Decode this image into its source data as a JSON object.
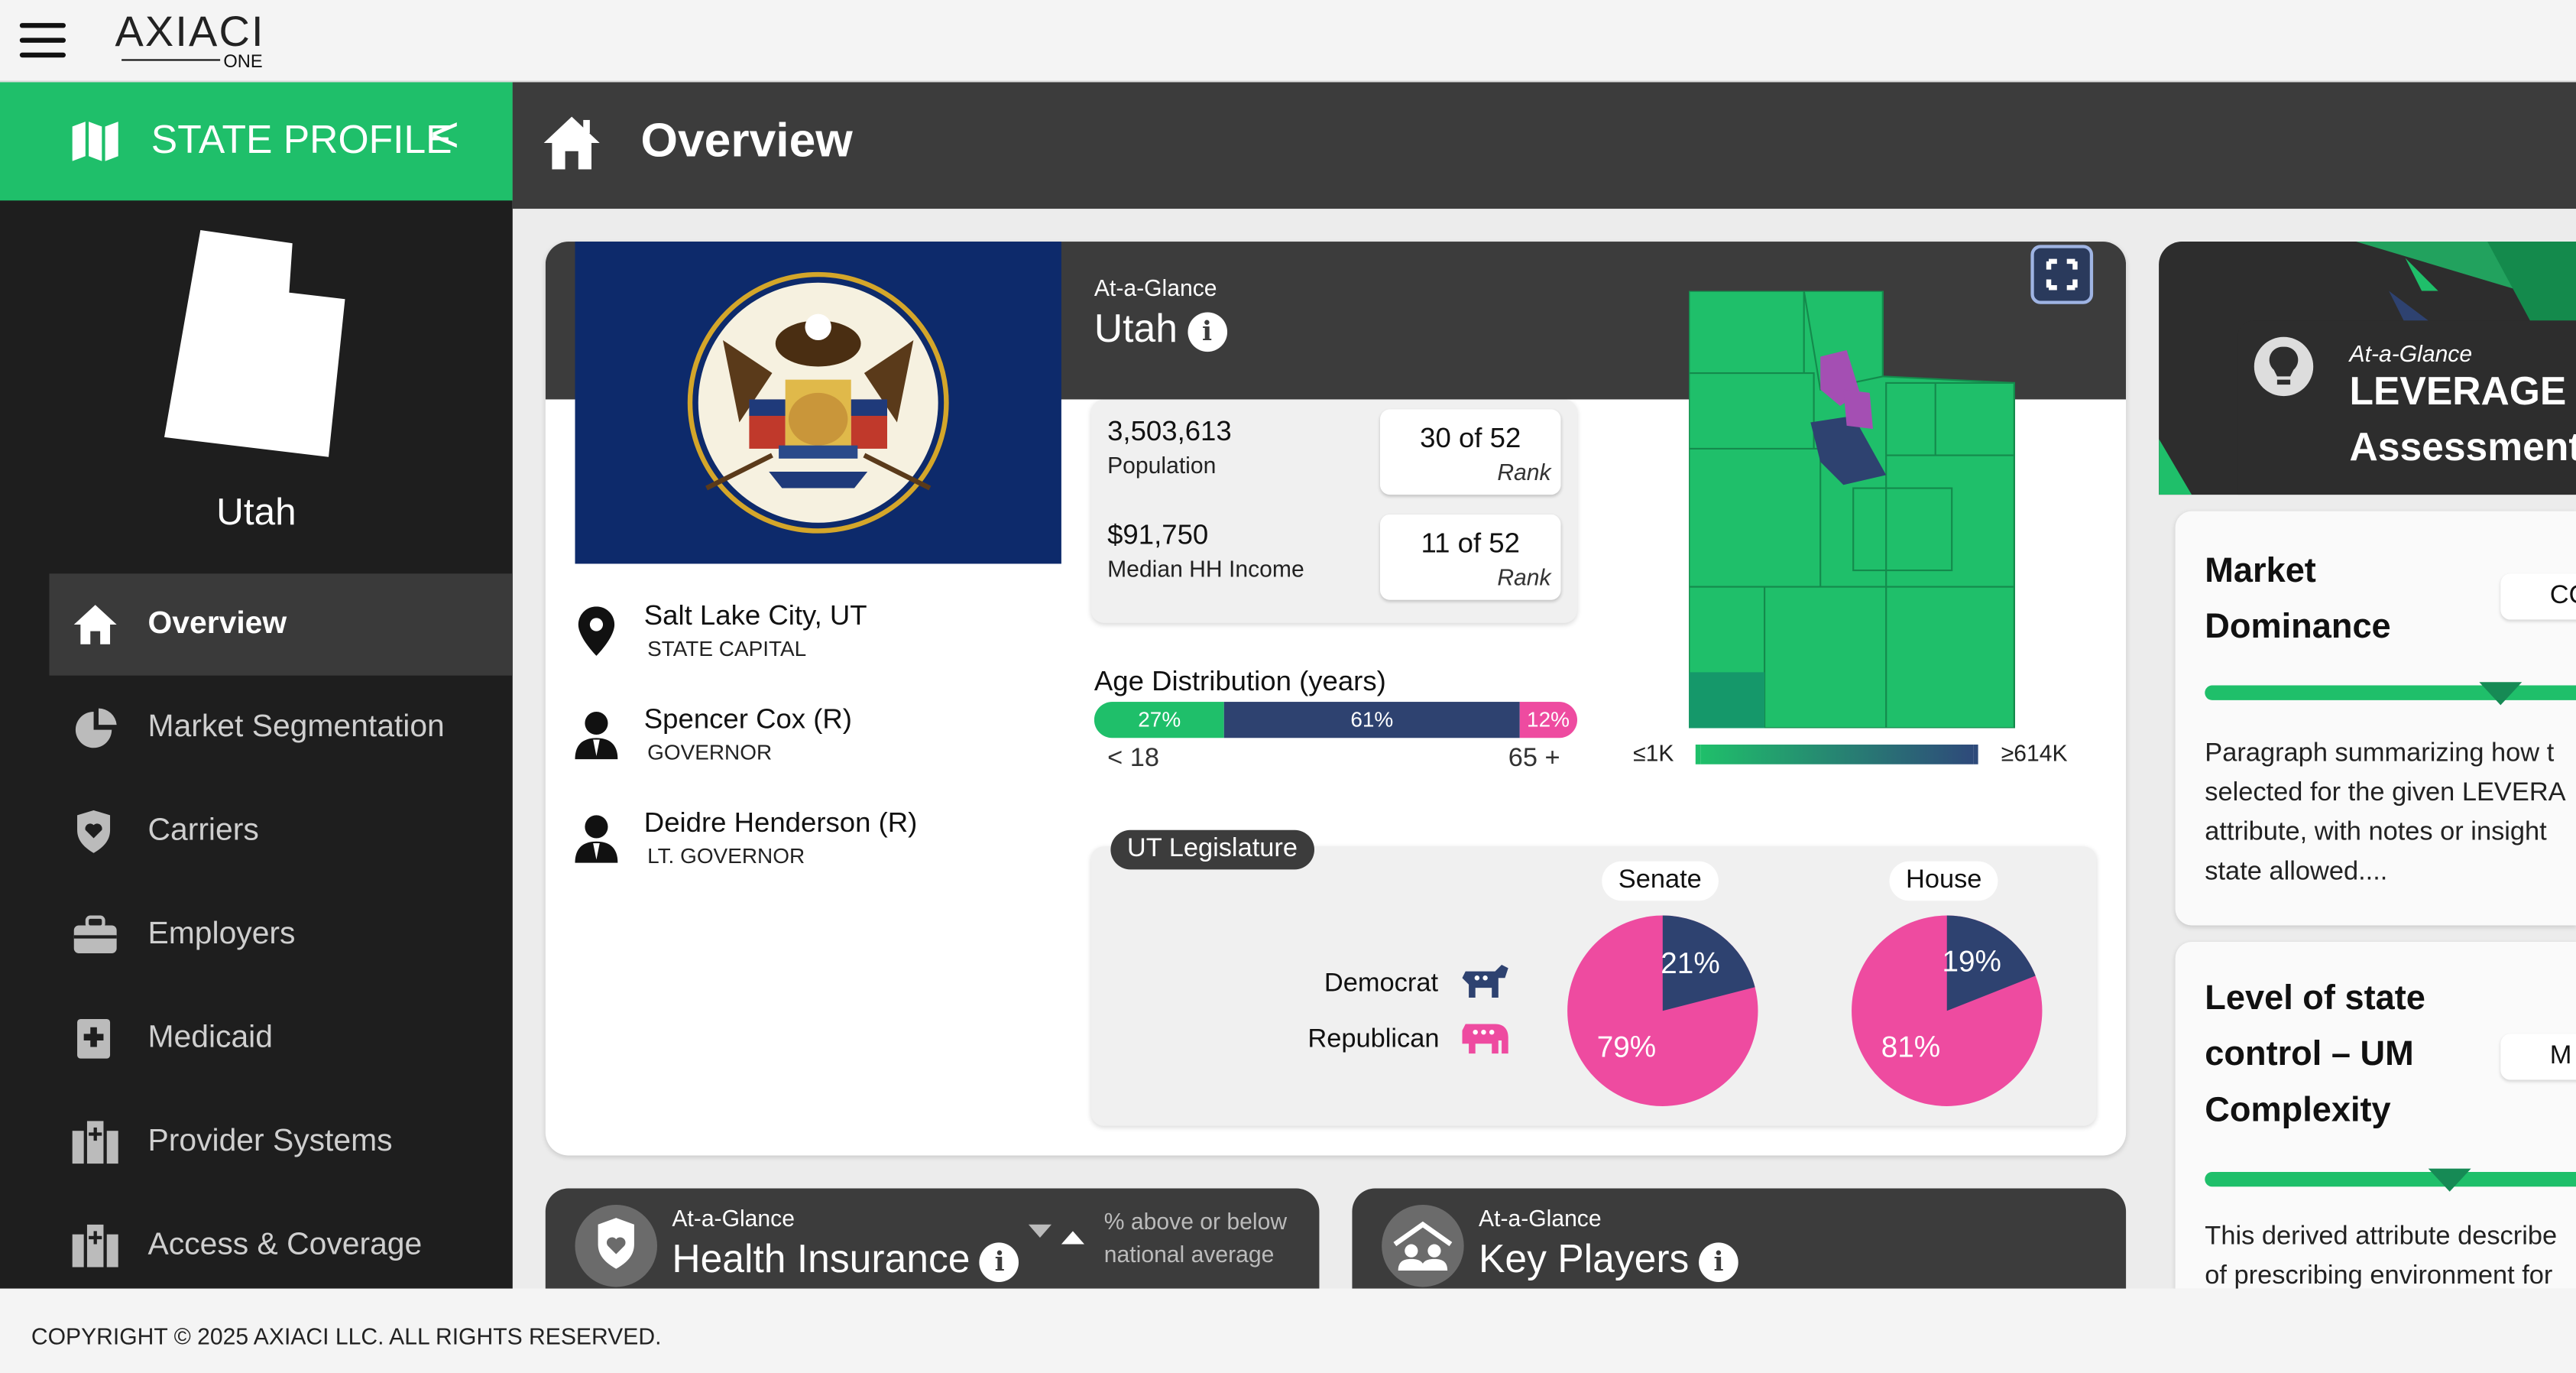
{
  "app": {
    "brand": "AXIACI",
    "brand_sub": "ONE"
  },
  "sidebar": {
    "title": "STATE PROFILE",
    "collapse_glyph": "<",
    "state_name": "Utah",
    "items": [
      {
        "label": "Overview",
        "icon": "home-icon",
        "active": true
      },
      {
        "label": "Market Segmentation",
        "icon": "pie-chart-icon"
      },
      {
        "label": "Carriers",
        "icon": "shield-heart-icon"
      },
      {
        "label": "Employers",
        "icon": "briefcase-icon"
      },
      {
        "label": "Medicaid",
        "icon": "medical-file-icon"
      },
      {
        "label": "Provider Systems",
        "icon": "hospital-icon"
      },
      {
        "label": "Access & Coverage",
        "icon": "hospital-icon"
      }
    ]
  },
  "header": {
    "title": "Overview"
  },
  "overview": {
    "eyebrow": "At-a-Glance",
    "title": "Utah",
    "info_glyph": "i",
    "population_value": "3,503,613",
    "population_label": "Population",
    "population_rank": "30 of 52",
    "income_value": "$91,750",
    "income_label": "Median HH Income",
    "income_rank": "11 of 52",
    "rank_label": "Rank",
    "capital_value": "Salt Lake City, UT",
    "capital_label": "STATE CAPITAL",
    "governor_value": "Spencer Cox (R)",
    "governor_label": "GOVERNOR",
    "lt_governor_value": "Deidre Henderson (R)",
    "lt_governor_label": "LT. GOVERNOR",
    "age_title": "Age Distribution (years)",
    "age_segments": [
      {
        "label": "27%",
        "value": 27,
        "color": "#1fbf6a"
      },
      {
        "label": "61%",
        "value": 61,
        "color": "#2e4270"
      },
      {
        "label": "12%",
        "value": 12,
        "color": "#ee4ba0"
      }
    ],
    "age_low": "< 18",
    "age_high": "65 +",
    "map_legend_low": "≤1K",
    "map_legend_high": "≥614K",
    "legislature_title": "UT Legislature",
    "senate_label": "Senate",
    "house_label": "House",
    "democrat_label": "Democrat",
    "republican_label": "Republican",
    "senate": {
      "dem": 21,
      "rep": 79,
      "dem_label": "21%",
      "rep_label": "79%"
    },
    "house": {
      "dem": 19,
      "rep": 81,
      "dem_label": "19%",
      "rep_label": "81%"
    },
    "colors": {
      "dem": "#2e4270",
      "rep": "#ee4ba0",
      "green": "#1fbf6a"
    }
  },
  "health_insurance": {
    "eyebrow": "At-a-Glance",
    "title": "Health Insurance",
    "note_line1": "% above or below",
    "note_line2": "national average"
  },
  "key_players": {
    "eyebrow": "At-a-Glance",
    "title": "Key Players"
  },
  "leverage": {
    "eyebrow": "At-a-Glance",
    "title_line1": "LEVERAGE",
    "title_line2": "Assessment",
    "panels": [
      {
        "title_lines": [
          "Market",
          "Dominance"
        ],
        "pill": "CO",
        "slider": 0.75,
        "text_lines": [
          "Paragraph summarizing how t",
          "selected for the given LEVERA",
          "attribute, with notes or insight",
          "state allowed...."
        ]
      },
      {
        "title_lines": [
          "Level of state",
          "control – UM",
          "Complexity"
        ],
        "pill": "M",
        "slider": 0.62,
        "text_lines": [
          "This derived attribute describe",
          "of prescribing environment for"
        ]
      }
    ]
  },
  "footer": {
    "copyright": "COPYRIGHT © 2025 AXIACI LLC. ALL RIGHTS RESERVED."
  }
}
